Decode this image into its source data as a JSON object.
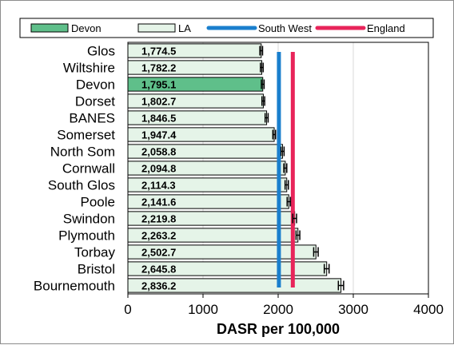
{
  "chart_data": {
    "type": "bar",
    "orientation": "horizontal",
    "title": "",
    "xlabel": "DASR per 100,000",
    "ylabel": "",
    "xlim": [
      0,
      4000
    ],
    "xticks": [
      0,
      1000,
      2000,
      3000,
      4000
    ],
    "grid": "vertical gridlines",
    "legend_position": "top",
    "categories": [
      "Glos",
      "Wiltshire",
      "Devon",
      "Dorset",
      "BANES",
      "Somerset",
      "North Som",
      "Cornwall",
      "South Glos",
      "Poole",
      "Swindon",
      "Plymouth",
      "Torbay",
      "Bristol",
      "Bournemouth"
    ],
    "values": [
      1774.5,
      1782.2,
      1795.1,
      1802.7,
      1846.5,
      1947.4,
      2058.8,
      2094.8,
      2114.3,
      2141.6,
      2219.8,
      2263.2,
      2502.7,
      2645.8,
      2836.2
    ],
    "value_labels": [
      "1,774.5",
      "1,782.2",
      "1,795.1",
      "1,802.7",
      "1,846.5",
      "1,947.4",
      "2,058.8",
      "2,094.8",
      "2,114.3",
      "2,141.6",
      "2,219.8",
      "2,263.2",
      "2,502.7",
      "2,645.8",
      "2,836.2"
    ],
    "ci_half_width": [
      18,
      18,
      18,
      18,
      20,
      18,
      20,
      20,
      22,
      22,
      25,
      25,
      30,
      32,
      35
    ],
    "highlight": "Devon",
    "reference_lines": [
      {
        "name": "South West",
        "value": 2010,
        "color": "#1a7fcd"
      },
      {
        "name": "England",
        "value": 2195,
        "color": "#e8245a"
      }
    ],
    "legend": [
      {
        "label": "Devon",
        "kind": "bar",
        "fill": "#5fbf8a"
      },
      {
        "label": "LA",
        "kind": "bar",
        "fill": "#e5f4e8"
      },
      {
        "label": "South West",
        "kind": "line",
        "color": "#1a7fcd"
      },
      {
        "label": "England",
        "kind": "line",
        "color": "#e8245a"
      }
    ],
    "colors": {
      "highlight_bar": "#5fbf8a",
      "bar": "#e5f4e8",
      "bar_edge": "#000000",
      "grid": "#d9d9d9"
    }
  }
}
